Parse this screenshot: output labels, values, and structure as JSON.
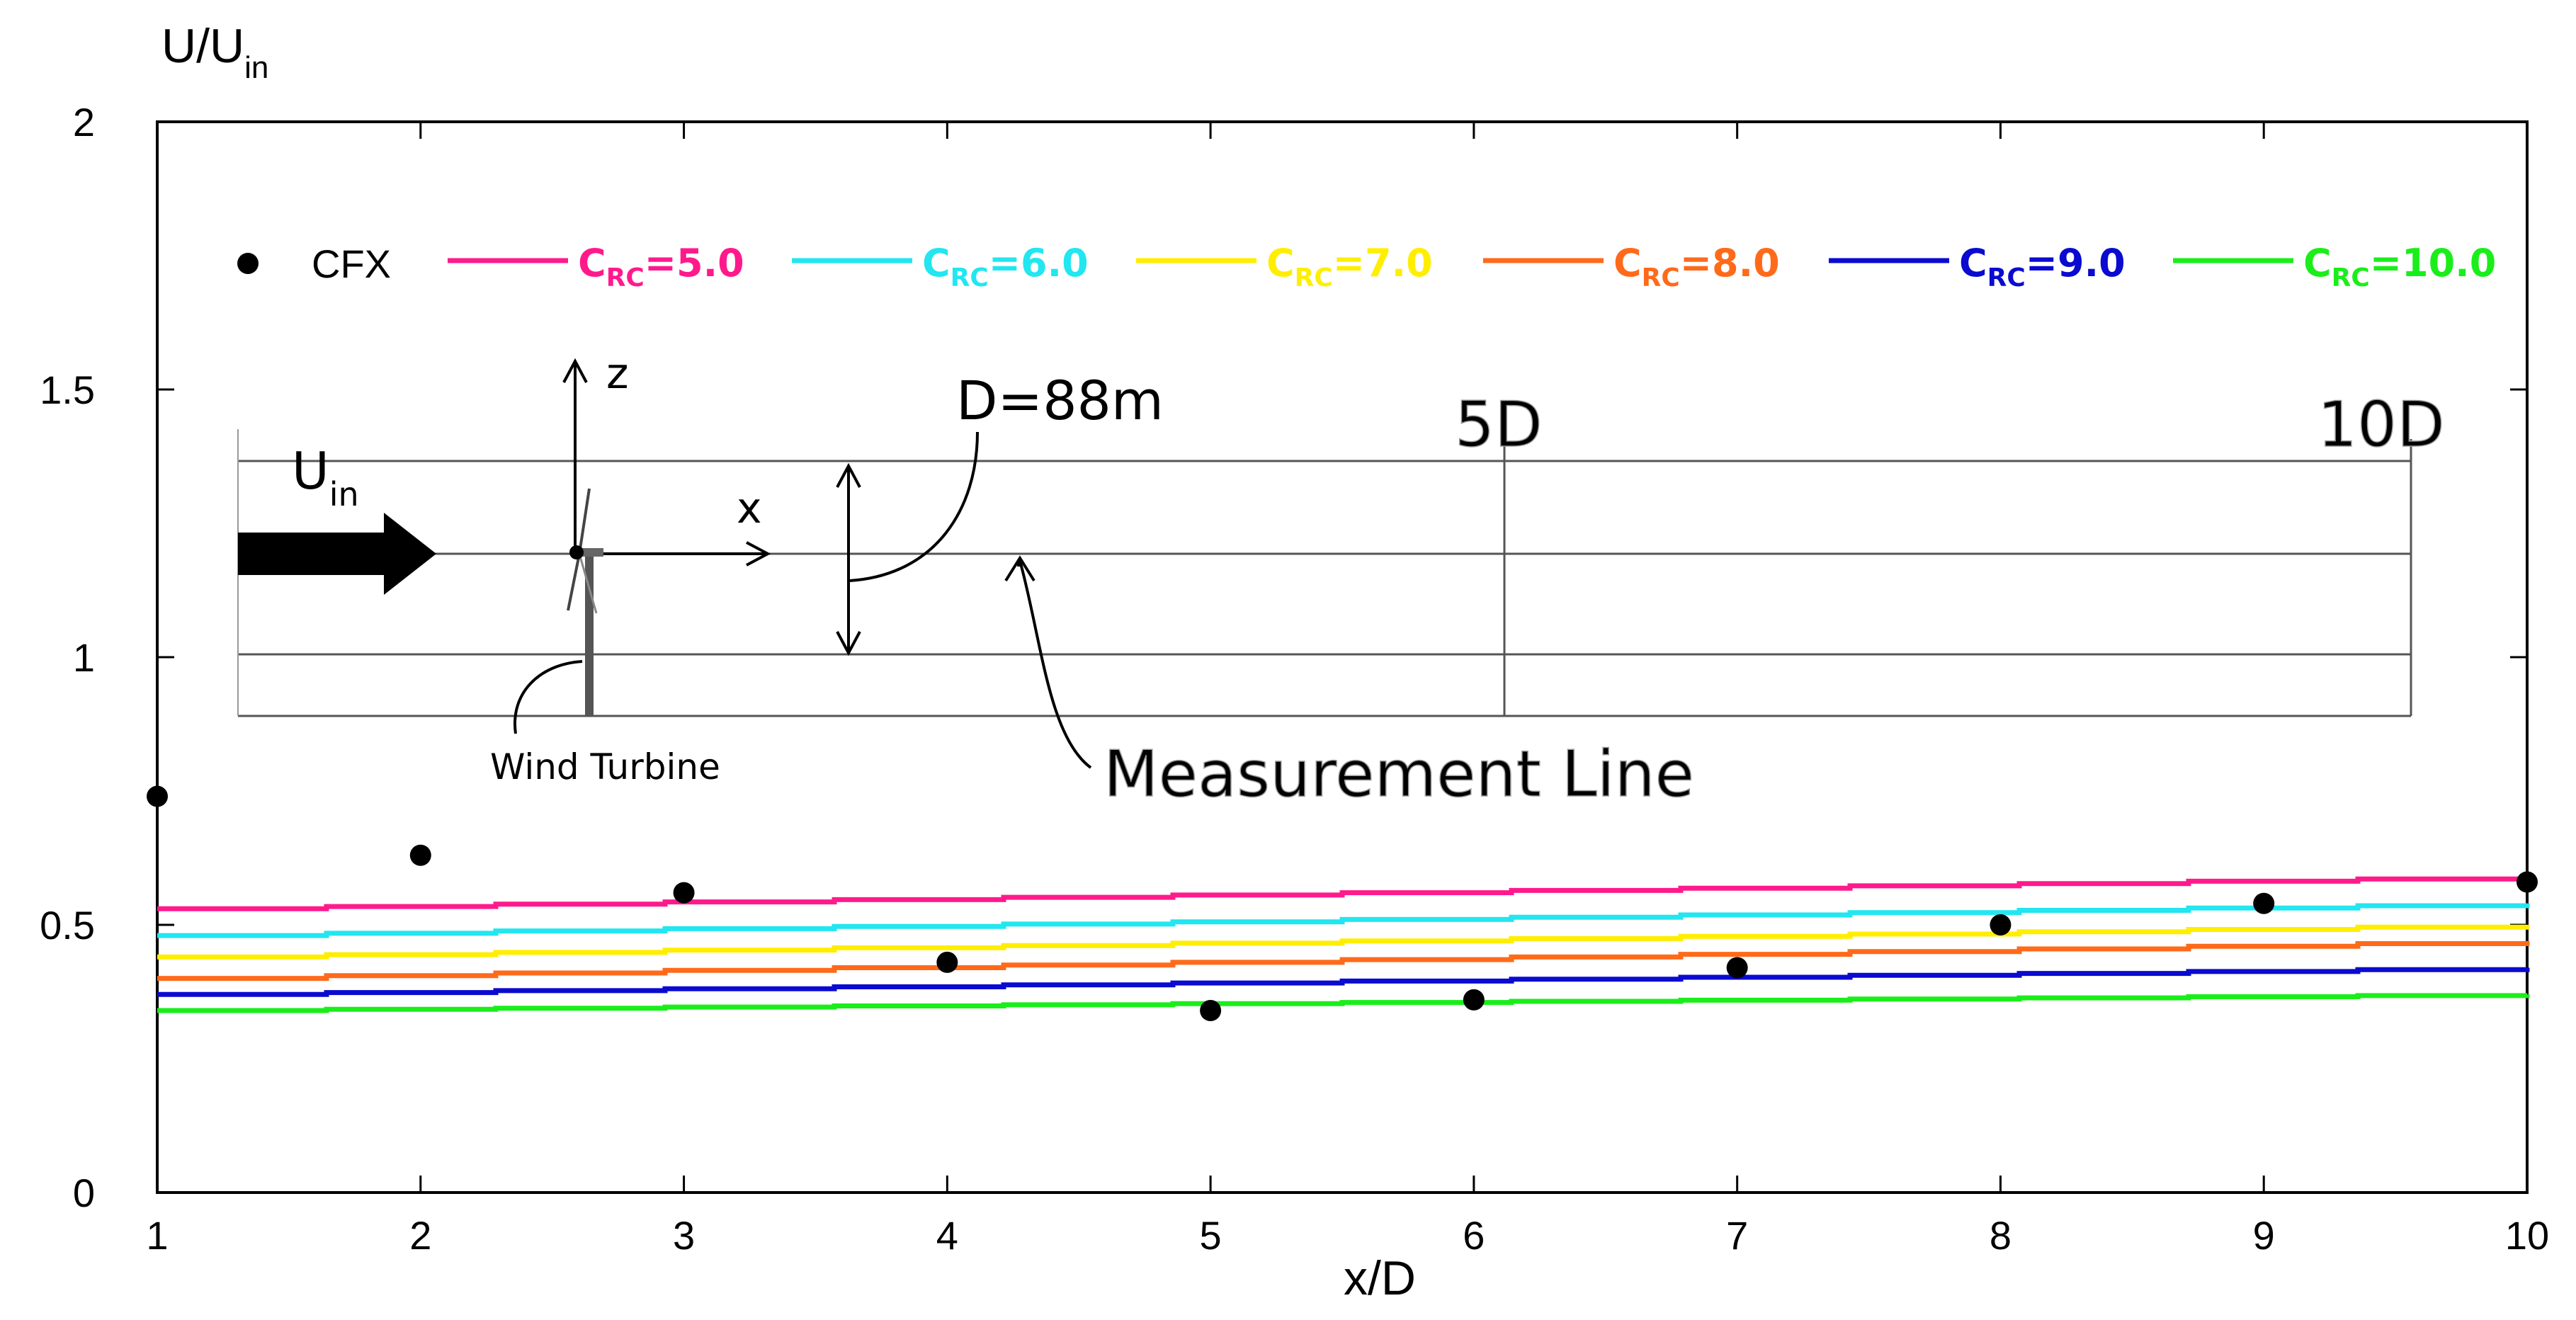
{
  "chart_data": {
    "type": "line",
    "title": "",
    "xlabel": "x/D",
    "ylabel": "U/U",
    "ylabel_sub": "in",
    "xlim": [
      1,
      10
    ],
    "ylim": [
      0,
      2
    ],
    "x_ticks": [
      1,
      2,
      3,
      4,
      5,
      6,
      7,
      8,
      9,
      10
    ],
    "y_ticks": [
      0,
      0.5,
      1,
      1.5,
      2
    ],
    "y_tick_labels": [
      "0",
      "0.5",
      "1",
      "1.5",
      "2"
    ],
    "grid": false,
    "legend_placement": "top",
    "scatter": {
      "name": "CFX",
      "color": "#000000",
      "x": [
        1,
        2,
        3,
        4,
        5,
        6,
        7,
        8,
        9,
        10
      ],
      "y": [
        0.74,
        0.63,
        0.56,
        0.43,
        0.34,
        0.36,
        0.42,
        0.5,
        0.54,
        0.58
      ]
    },
    "series": [
      {
        "name": "5.0",
        "color": "#ff1a8c",
        "x": [
          1,
          10
        ],
        "y": [
          0.53,
          0.59
        ]
      },
      {
        "name": "6.0",
        "color": "#22e6f0",
        "x": [
          1,
          10
        ],
        "y": [
          0.48,
          0.54
        ]
      },
      {
        "name": "7.0",
        "color": "#ffee00",
        "x": [
          1,
          10
        ],
        "y": [
          0.44,
          0.5
        ]
      },
      {
        "name": "8.0",
        "color": "#ff6a1a",
        "x": [
          1,
          10
        ],
        "y": [
          0.4,
          0.47
        ]
      },
      {
        "name": "9.0",
        "color": "#0a0ad0",
        "x": [
          1,
          10
        ],
        "y": [
          0.37,
          0.42
        ]
      },
      {
        "name": "10.0",
        "color": "#1aee1a",
        "x": [
          1,
          10
        ],
        "y": [
          0.34,
          0.37
        ]
      }
    ],
    "legend_prefix": "C",
    "legend_prefix_sub": "RC",
    "legend_eq": "="
  },
  "inset": {
    "u_main": "U",
    "u_sub": "in",
    "z_label": "z",
    "x_label": "x",
    "d_label": "D=88m",
    "mark_5d": "5D",
    "mark_10d": "10D",
    "turbine_label": "Wind Turbine",
    "measurement_label": "Measurement Line"
  }
}
